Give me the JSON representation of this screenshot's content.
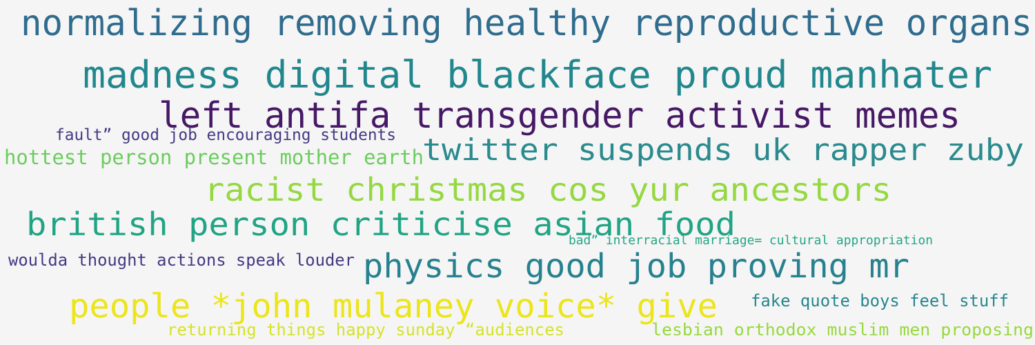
{
  "background_color": "#f5f5f5",
  "phrases": [
    {
      "text": "normalizing removing healthy reproductive organs",
      "color": "#2f6c8e"
    },
    {
      "text": "madness digital blackface proud manhater",
      "color": "#21878d"
    },
    {
      "text": "left antifa transgender activist memes",
      "color": "#461866"
    },
    {
      "text": "fault” good job encouraging students",
      "color": "#433a83"
    },
    {
      "text": "twitter suspends uk rapper zuby",
      "color": "#2a8a8d"
    },
    {
      "text": "hottest person present mother earth",
      "color": "#6ccc5e"
    },
    {
      "text": "racist christmas cos yur ancestors",
      "color": "#95d840"
    },
    {
      "text": "british person criticise asian food",
      "color": "#21a485"
    },
    {
      "text": "bad” interracial marriage= cultural appropriation",
      "color": "#23a584"
    },
    {
      "text": "woulda thought actions speak louder",
      "color": "#433a83"
    },
    {
      "text": "physics good job proving mr",
      "color": "#27818e"
    },
    {
      "text": "people *john mulaney voice* give",
      "color": "#ece51b"
    },
    {
      "text": "fake quote boys feel stuff",
      "color": "#25878d"
    },
    {
      "text": "returning things happy sunday “audiences",
      "color": "#d6e22b"
    },
    {
      "text": "lesbian orthodox muslim men proposing",
      "color": "#98d83e"
    }
  ]
}
